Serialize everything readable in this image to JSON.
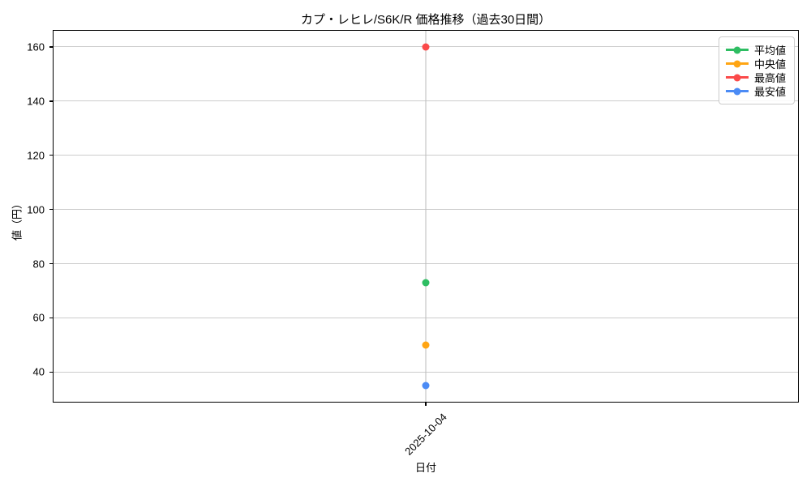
{
  "chart_data": {
    "type": "line",
    "title": "カプ・レヒレ/S6K/R 価格推移（過去30日間）",
    "xlabel": "日付",
    "ylabel": "値（円）",
    "categories": [
      "2025-10-04"
    ],
    "series": [
      {
        "name": "平均値",
        "values": [
          73
        ],
        "color": "#2ebd62"
      },
      {
        "name": "中央値",
        "values": [
          50
        ],
        "color": "#ffa513"
      },
      {
        "name": "最高値",
        "values": [
          160
        ],
        "color": "#fb4a4a"
      },
      {
        "name": "最安値",
        "values": [
          35
        ],
        "color": "#4b8bf5"
      }
    ],
    "ylim": [
      28.75,
      166.25
    ],
    "yticks": [
      40,
      60,
      80,
      100,
      120,
      140,
      160
    ],
    "grid": true,
    "grid_color": "#cccccc",
    "spine_color": "#000000",
    "background_color": "#ffffff",
    "legend_position": "upper right"
  }
}
